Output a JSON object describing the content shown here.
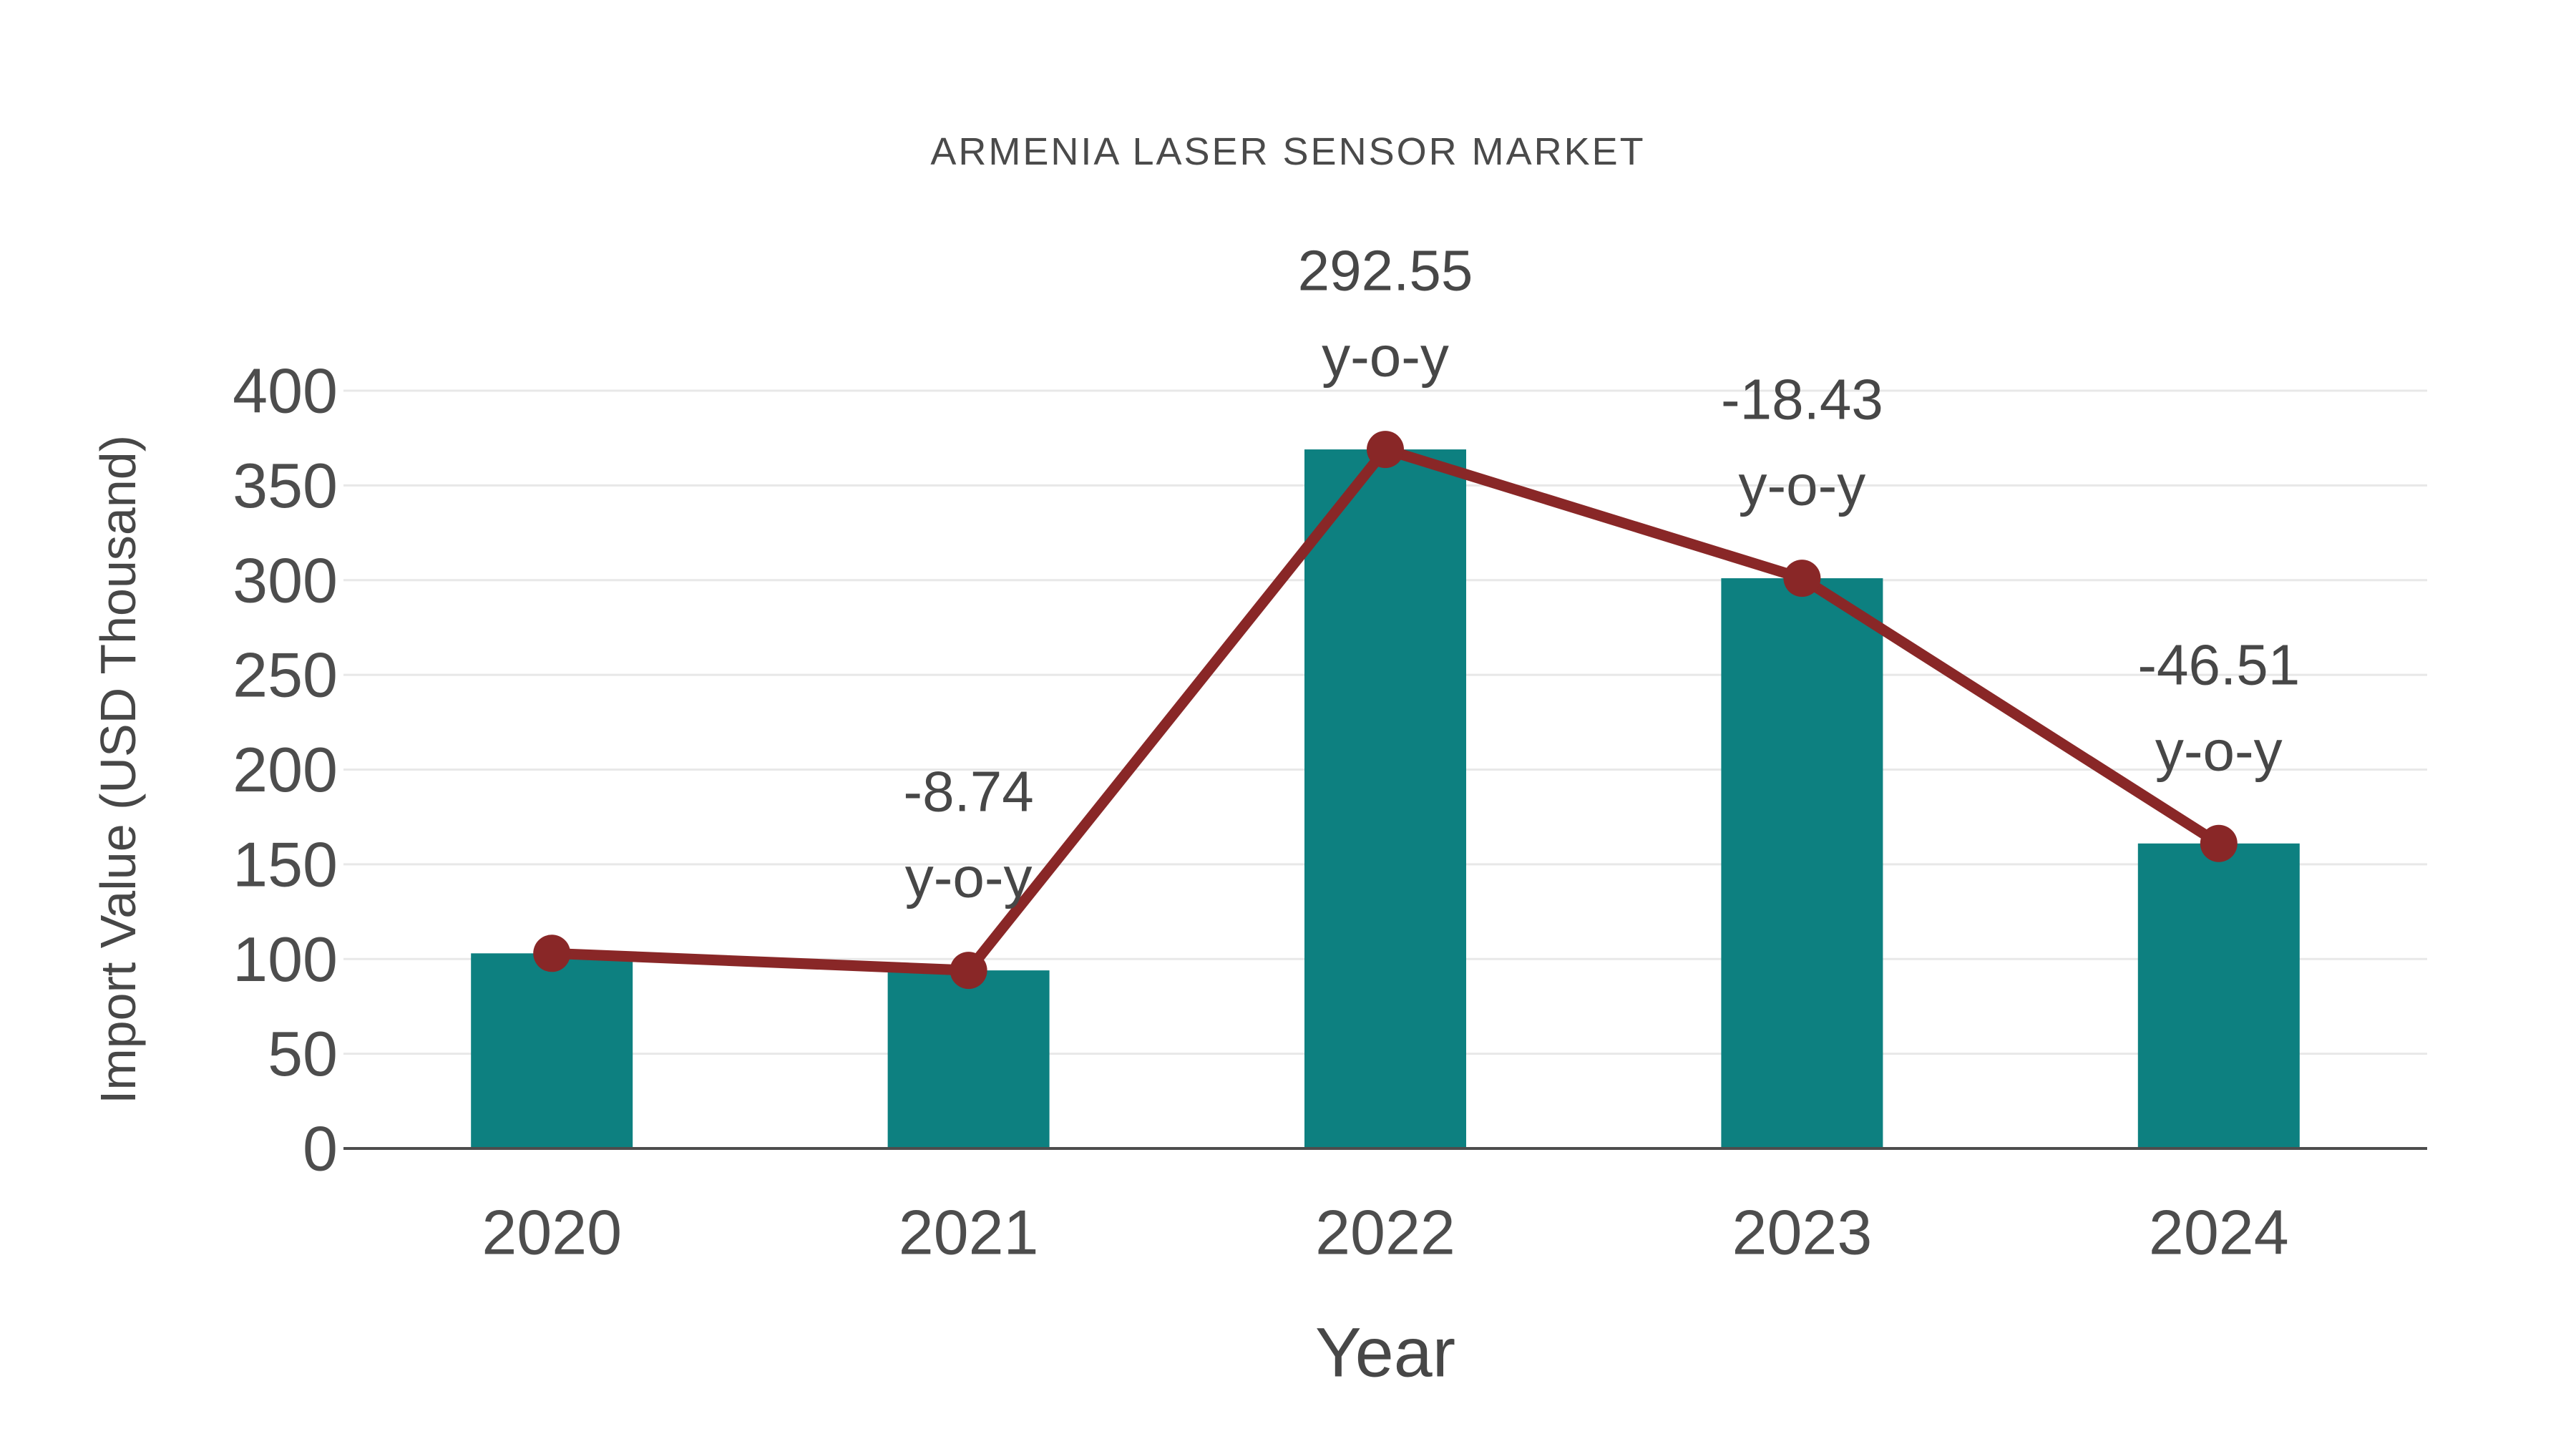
{
  "chart_data": {
    "type": "bar",
    "title": "ARMENIA LASER SENSOR MARKET",
    "xlabel": "Year",
    "ylabel": "Import Value (USD Thousand)",
    "categories": [
      "2020",
      "2021",
      "2022",
      "2023",
      "2024"
    ],
    "series": [
      {
        "name": "Import Value (USD Thousand)",
        "type": "bar",
        "color": "#0d8080",
        "values": [
          103,
          94,
          369,
          301,
          161
        ]
      },
      {
        "name": "y-o-y growth line",
        "type": "line",
        "color": "#892727",
        "values": [
          103,
          94,
          369,
          301,
          161
        ]
      }
    ],
    "annotations": [
      {
        "category": "2021",
        "line1": "-8.74",
        "line2": "y-o-y"
      },
      {
        "category": "2022",
        "line1": "292.55",
        "line2": "y-o-y"
      },
      {
        "category": "2023",
        "line1": "-18.43",
        "line2": "y-o-y"
      },
      {
        "category": "2024",
        "line1": "-46.51",
        "line2": "y-o-y"
      }
    ],
    "ylim": [
      0,
      400
    ],
    "yticks": [
      0,
      50,
      100,
      150,
      200,
      250,
      300,
      350,
      400
    ],
    "grid": "horizontal-light",
    "legend": "none",
    "colors": {
      "bar": "#0d8080",
      "line": "#892727",
      "marker": "#892727",
      "text": "#474747",
      "title": "#4a4a4a",
      "grid": "#e8e8e8",
      "axis": "#4d4d4d",
      "background": "#ffffff"
    }
  }
}
